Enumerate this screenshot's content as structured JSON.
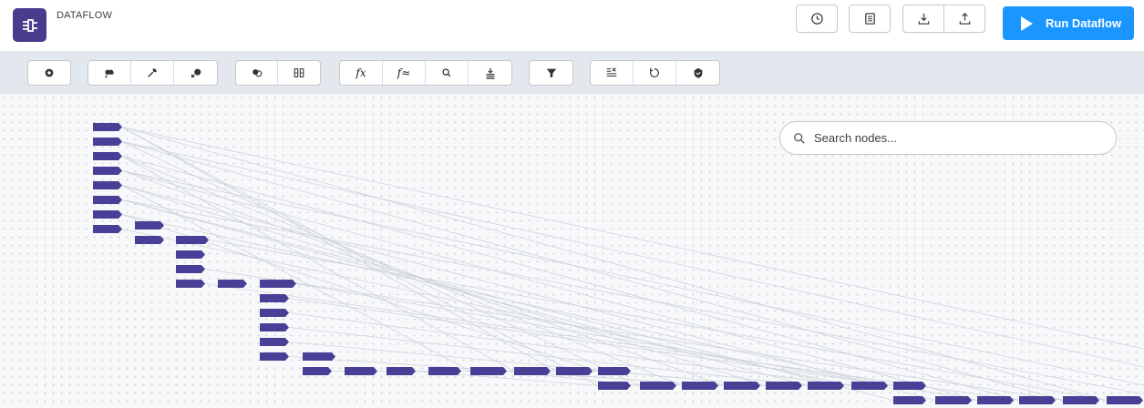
{
  "header": {
    "app_title": "DATAFLOW",
    "icons": [
      "history-icon",
      "notes-icon",
      "download-icon",
      "upload-icon"
    ],
    "run_label": "Run Dataflow",
    "run_color": "#1b96ff"
  },
  "toolbar": {
    "fx_label": "fx",
    "fx2_label": "f≈"
  },
  "canvas": {
    "search_placeholder": "Search nodes...",
    "node_color": "#4a3f96"
  }
}
